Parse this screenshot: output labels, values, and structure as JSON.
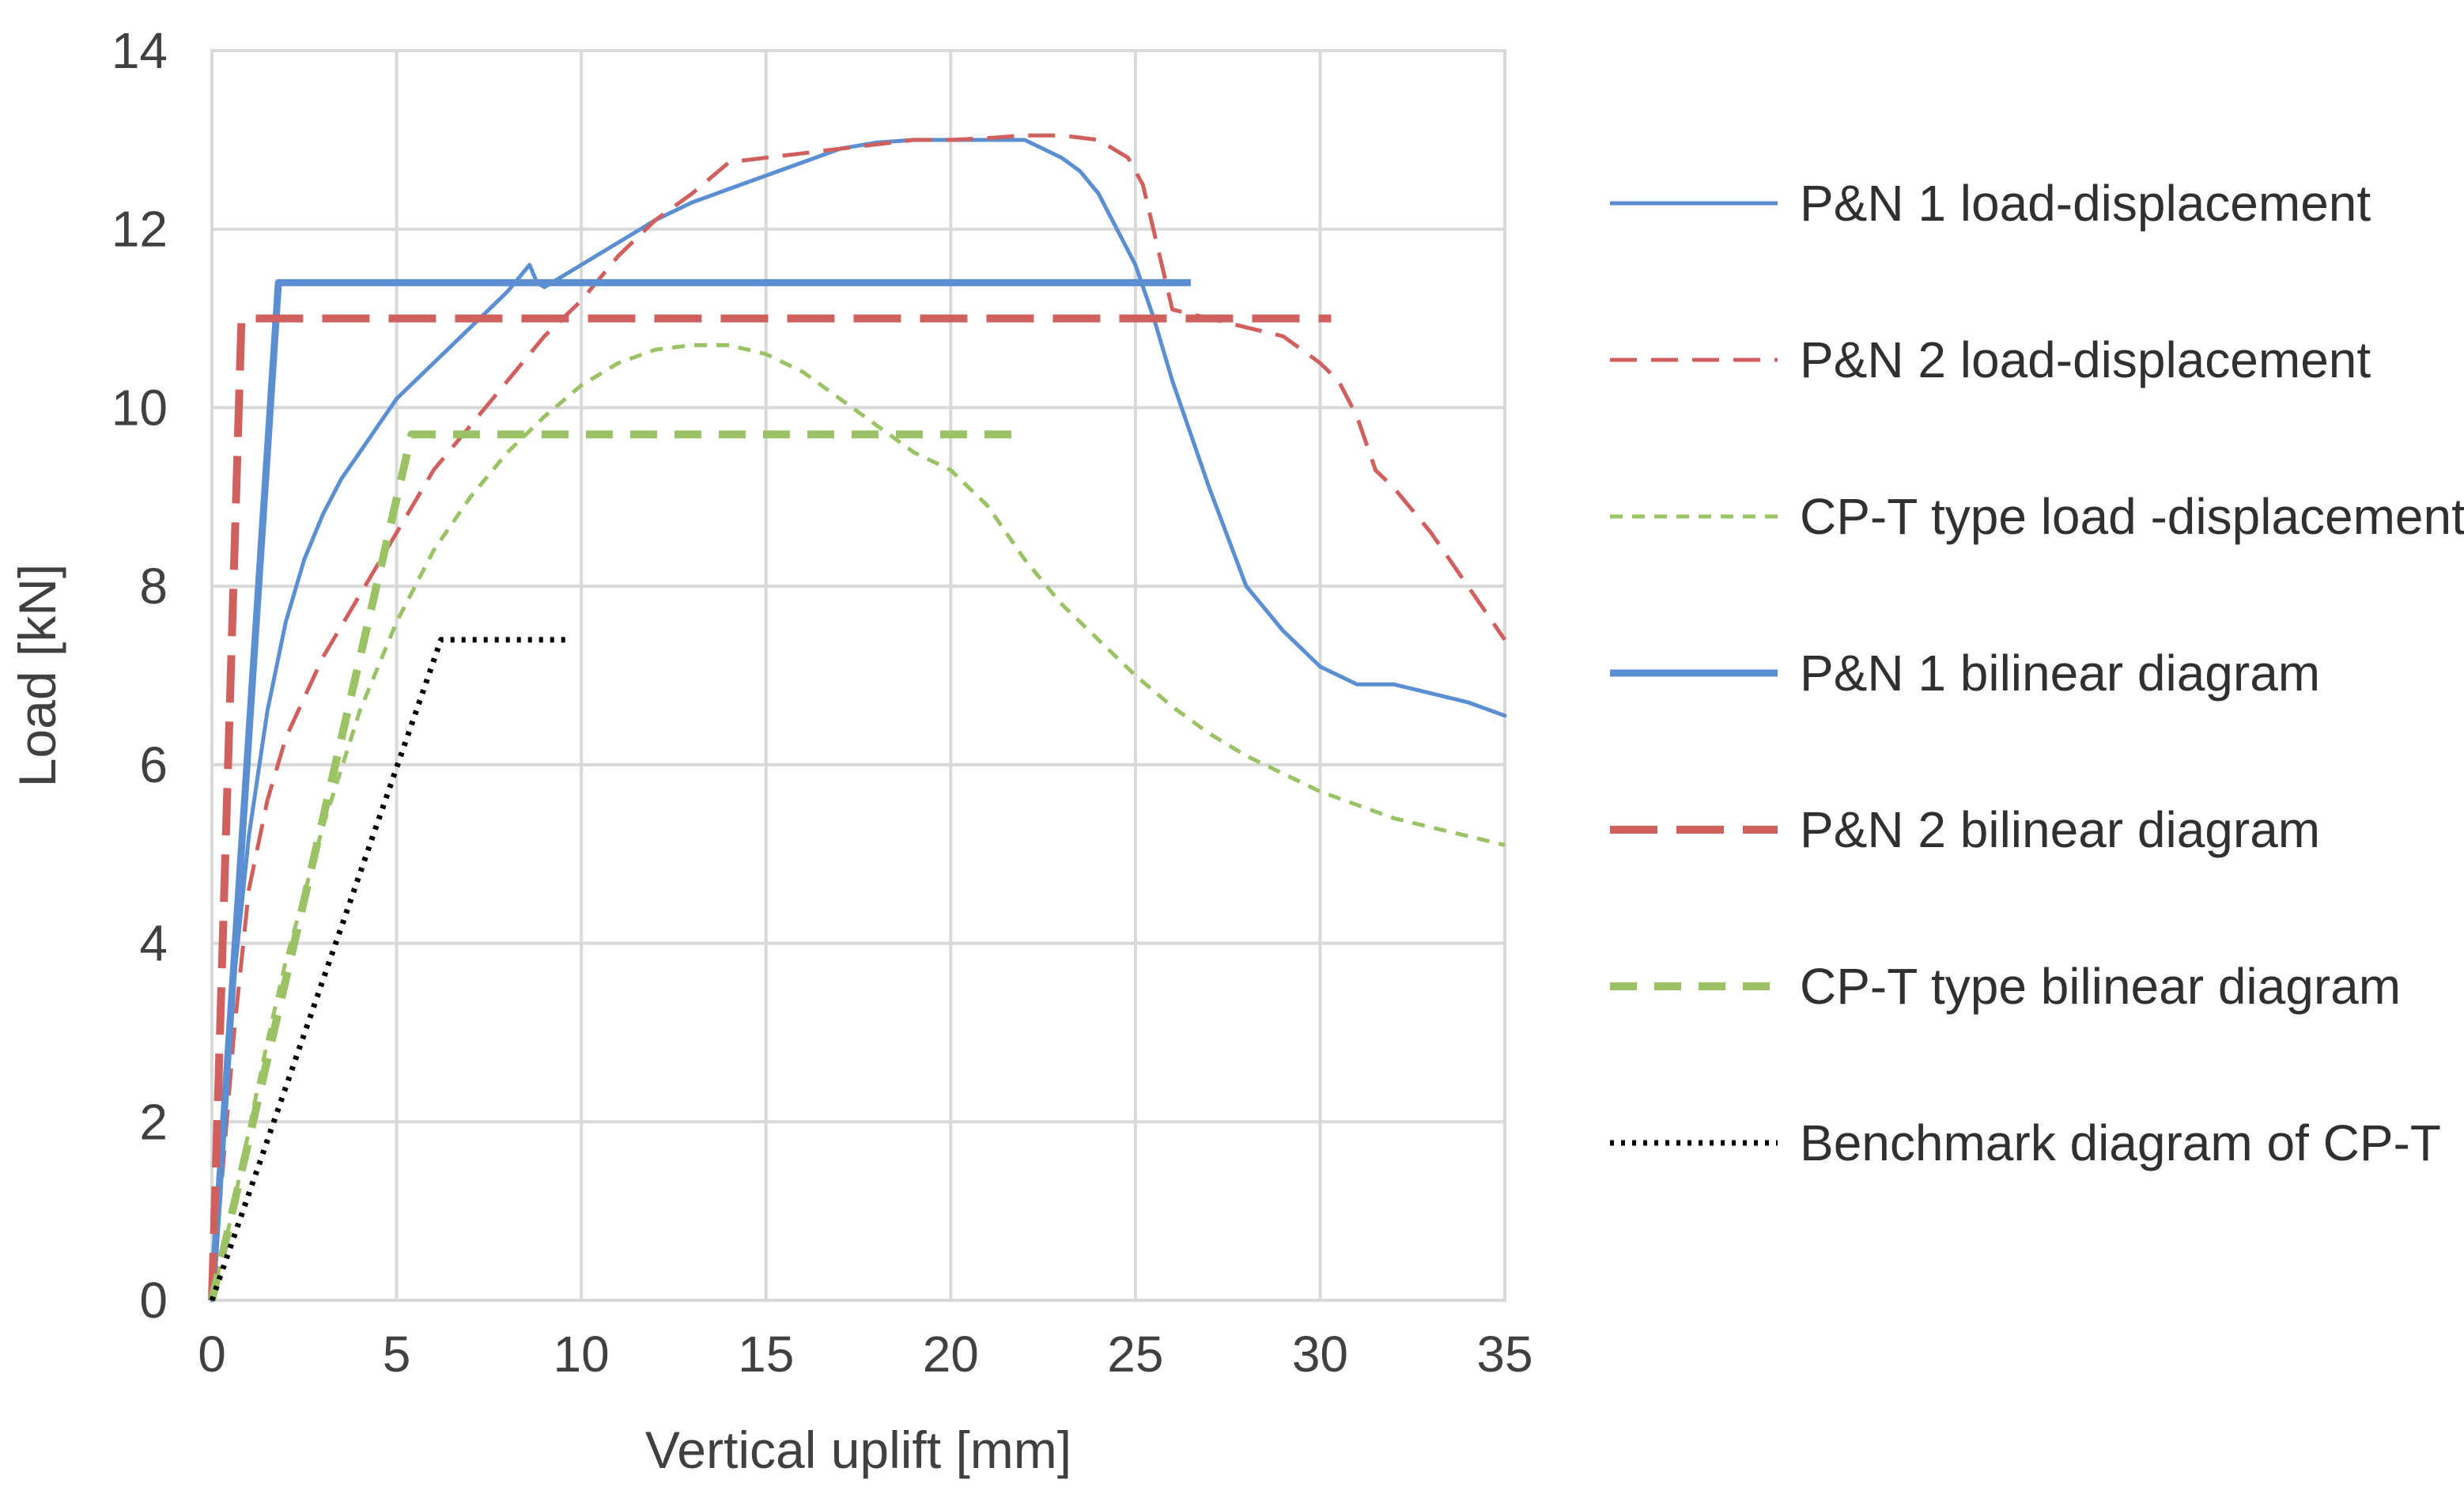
{
  "chart_data": {
    "type": "line",
    "title": "",
    "xlabel": "Vertical uplift [mm]",
    "ylabel": "Load [kN]",
    "xlim": [
      0,
      35
    ],
    "ylim": [
      0,
      14
    ],
    "xticks": [
      0,
      5,
      10,
      15,
      20,
      25,
      30,
      35
    ],
    "yticks": [
      0,
      2,
      4,
      6,
      8,
      10,
      12,
      14
    ],
    "xtick_labels": [
      "0",
      "5",
      "10",
      "15",
      "20",
      "25",
      "30",
      "35"
    ],
    "ytick_labels": [
      "0",
      "2",
      "4",
      "6",
      "8",
      "10",
      "12",
      "14"
    ],
    "grid": true,
    "legend_position": "right",
    "series": [
      {
        "name": "P&N 1 load-displacement",
        "color": "#5b8fd1",
        "style": "solid-thin",
        "x": [
          0,
          0.2,
          0.5,
          1,
          1.5,
          2,
          2.5,
          3,
          3.5,
          4,
          4.5,
          5,
          5.5,
          6,
          7,
          8,
          8.6,
          8.8,
          9,
          10,
          11,
          12,
          13,
          14,
          15,
          16,
          17,
          18,
          19,
          20,
          21,
          22,
          23,
          23.5,
          24,
          24.5,
          25,
          25.5,
          26,
          27,
          28,
          29,
          30,
          31,
          32,
          33,
          34,
          35
        ],
        "values": [
          0,
          1.2,
          3.2,
          5.2,
          6.6,
          7.6,
          8.3,
          8.8,
          9.2,
          9.5,
          9.8,
          10.1,
          10.3,
          10.5,
          10.9,
          11.3,
          11.6,
          11.4,
          11.35,
          11.6,
          11.85,
          12.1,
          12.3,
          12.45,
          12.6,
          12.75,
          12.9,
          12.97,
          13.0,
          13.0,
          13.0,
          13.0,
          12.8,
          12.65,
          12.4,
          12.0,
          11.6,
          11.0,
          10.3,
          9.1,
          8.0,
          7.5,
          7.1,
          6.9,
          6.9,
          6.8,
          6.7,
          6.55
        ]
      },
      {
        "name": "P&N 2 load-displacement",
        "color": "#d0605e",
        "style": "dashed-thin",
        "x": [
          0,
          0.3,
          0.6,
          1,
          1.5,
          2,
          3,
          4,
          5,
          6,
          7,
          8,
          9,
          10,
          11,
          12,
          13,
          14,
          15,
          16,
          17,
          18,
          19,
          20,
          21,
          22,
          23,
          24,
          24.8,
          25.2,
          25.6,
          26,
          27,
          28,
          29,
          30,
          30.5,
          31,
          31.5,
          32,
          33,
          34,
          35
        ],
        "values": [
          0,
          1.5,
          3.0,
          4.6,
          5.6,
          6.3,
          7.2,
          7.9,
          8.6,
          9.3,
          9.8,
          10.3,
          10.8,
          11.2,
          11.7,
          12.1,
          12.4,
          12.75,
          12.8,
          12.85,
          12.9,
          12.95,
          13.0,
          13.0,
          13.02,
          13.05,
          13.05,
          13.0,
          12.8,
          12.5,
          11.8,
          11.1,
          11.0,
          10.9,
          10.8,
          10.5,
          10.3,
          9.9,
          9.3,
          9.1,
          8.6,
          8.0,
          7.4
        ]
      },
      {
        "name": "CP-T type load -displacement",
        "color": "#9bc264",
        "style": "dashed-fine",
        "x": [
          0,
          0.5,
          1,
          1.5,
          2,
          3,
          4,
          5,
          6,
          7,
          8,
          9,
          10,
          11,
          12,
          13,
          14,
          15,
          16,
          17,
          18,
          19,
          20,
          21,
          22,
          23,
          24,
          25,
          26,
          27,
          28,
          29,
          30,
          31,
          32,
          33,
          34,
          35
        ],
        "values": [
          0,
          0.9,
          1.9,
          2.9,
          3.8,
          5.3,
          6.6,
          7.6,
          8.4,
          9.0,
          9.5,
          9.9,
          10.25,
          10.5,
          10.65,
          10.7,
          10.7,
          10.6,
          10.4,
          10.1,
          9.8,
          9.5,
          9.3,
          8.9,
          8.3,
          7.8,
          7.4,
          7.0,
          6.65,
          6.35,
          6.1,
          5.9,
          5.7,
          5.55,
          5.4,
          5.3,
          5.2,
          5.1
        ]
      },
      {
        "name": "P&N 1 bilinear diagram",
        "color": "#5b8fd1",
        "style": "solid-thick",
        "x": [
          0,
          1.8,
          26.5
        ],
        "values": [
          0,
          11.4,
          11.4
        ]
      },
      {
        "name": "P&N 2 bilinear diagram",
        "color": "#d0605e",
        "style": "dashed-long",
        "x": [
          0,
          0.8,
          30.3
        ],
        "values": [
          0,
          11.0,
          11.0
        ]
      },
      {
        "name": "CP-T type bilinear diagram",
        "color": "#9bc264",
        "style": "dashed-medium",
        "x": [
          0,
          5.4,
          22
        ],
        "values": [
          0,
          9.7,
          9.7
        ]
      },
      {
        "name": "Benchmark diagram of CP-T",
        "color": "#000000",
        "style": "dotted",
        "x": [
          0,
          6.2,
          9.7
        ],
        "values": [
          0,
          7.4,
          7.4
        ]
      }
    ]
  }
}
